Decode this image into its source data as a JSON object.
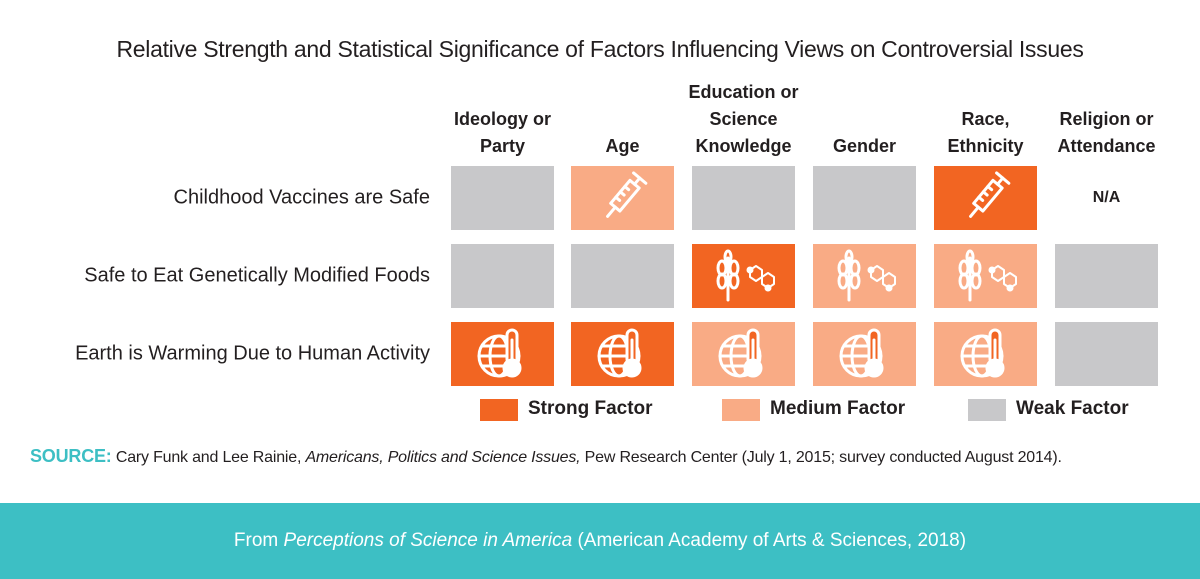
{
  "title": "Relative Strength and Statistical Significance of Factors Influencing Views on Controversial Issues",
  "columns": [
    "Ideology or Party",
    "Age",
    "Education or Science Knowledge",
    "Gender",
    "Race, Ethnicity",
    "Religion or Attendance"
  ],
  "rows": [
    {
      "label": "Childhood Vaccines are Safe",
      "cells": [
        2,
        1,
        2,
        2,
        0,
        "N/A"
      ]
    },
    {
      "label": "Safe to Eat Genetically Modified Foods",
      "cells": [
        2,
        2,
        0,
        1,
        1,
        2
      ]
    },
    {
      "label": "Earth is Warming Due to Human Activity",
      "cells": [
        0,
        0,
        1,
        1,
        1,
        2
      ]
    }
  ],
  "legend": [
    {
      "label": "Strong Factor",
      "color": "#f26522"
    },
    {
      "label": "Medium Factor",
      "color": "#f9ab85"
    },
    {
      "label": "Weak Factor",
      "color": "#c8c8ca"
    }
  ],
  "source": {
    "label": "SOURCE:",
    "before": "Cary Funk and Lee Rainie, ",
    "title": "Americans, Politics and Science Issues,",
    "after": " Pew Research Center (July 1, 2015; survey conducted August 2014)."
  },
  "footer": {
    "before": "From ",
    "title": "Perceptions of Science in America",
    "after": " (American Academy of Arts & Sciences, 2018)"
  }
}
